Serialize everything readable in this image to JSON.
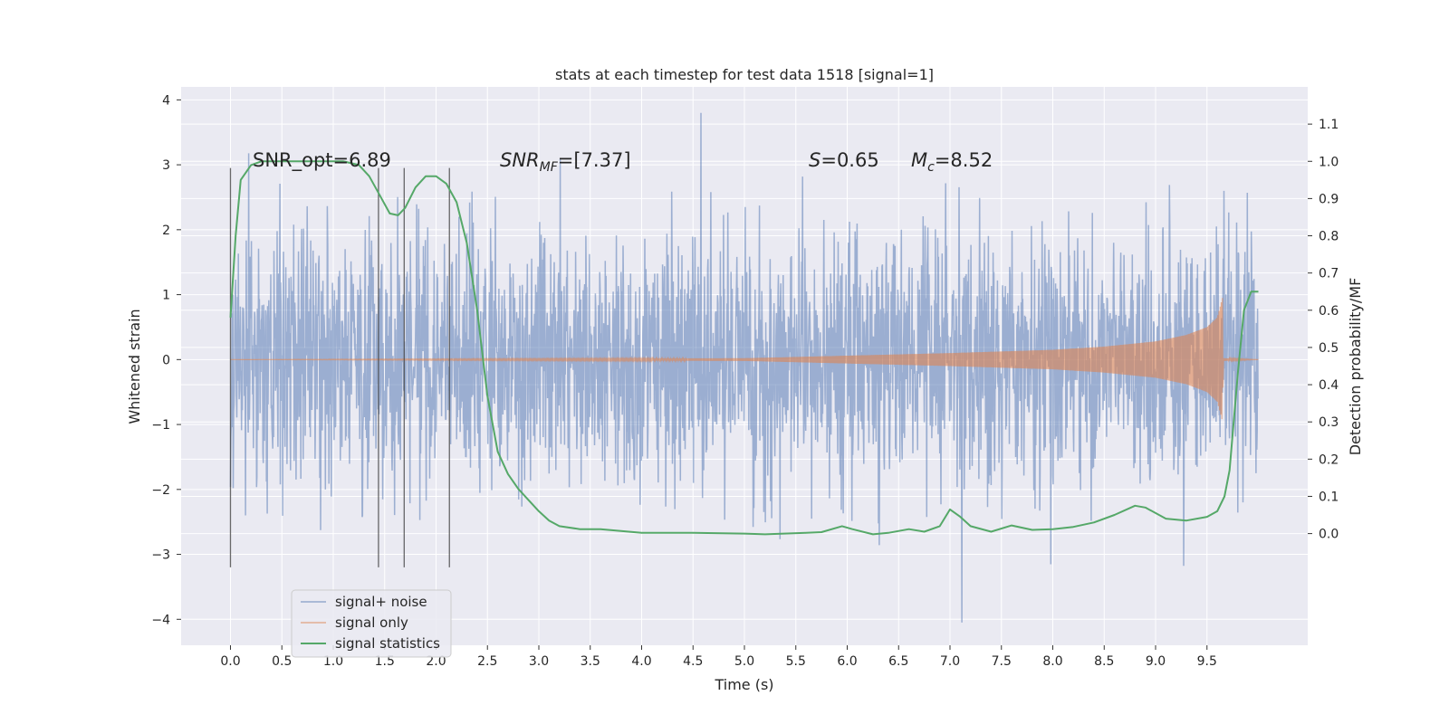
{
  "chart_data": {
    "type": "line",
    "title": "stats at each timestep for test data 1518 [signal=1]",
    "xlabel": "Time (s)",
    "ylabel": "Whitened strain",
    "y2label": "Detection probability/MF",
    "xlim": [
      -0.48,
      10.48
    ],
    "ylim": [
      -4.4,
      4.2
    ],
    "y2lim": [
      -0.3,
      1.2
    ],
    "x_ticks": [
      "0.0",
      "0.5",
      "1.0",
      "1.5",
      "2.0",
      "2.5",
      "3.0",
      "3.5",
      "4.0",
      "4.5",
      "5.0",
      "5.5",
      "6.0",
      "6.5",
      "7.0",
      "7.5",
      "8.0",
      "8.5",
      "9.0",
      "9.5"
    ],
    "y_ticks": [
      "−4",
      "−3",
      "−2",
      "−1",
      "0",
      "1",
      "2",
      "3",
      "4"
    ],
    "y2_ticks": [
      "0.0",
      "0.1",
      "0.2",
      "0.3",
      "0.4",
      "0.5",
      "0.6",
      "0.7",
      "0.8",
      "0.9",
      "1.0",
      "1.1"
    ],
    "grid": true,
    "legend_position": "lower-left",
    "annotations": {
      "snr_opt": "SNR_opt=6.89",
      "snr_mf_main": "SNR",
      "snr_mf_sub": "MF",
      "snr_mf_rest": "=[7.37]",
      "s_italic": "S",
      "s_rest": "=0.65",
      "mc_main": "M",
      "mc_sub": "c",
      "mc_rest": "=8.52"
    },
    "markers_x": [
      0.0,
      1.44,
      1.69,
      2.13
    ],
    "series": [
      {
        "name": "signal+ noise",
        "color": "#4c72b0",
        "noise_amplitude": 2.05,
        "noise_peaks": [
          -4.05,
          3.8
        ],
        "x_range": [
          0.0,
          10.0
        ]
      },
      {
        "name": "signal only",
        "color": "#dd8452",
        "envelope": [
          [
            0.0,
            0.0
          ],
          [
            5.0,
            0.02
          ],
          [
            6.0,
            0.06
          ],
          [
            7.0,
            0.1
          ],
          [
            8.0,
            0.15
          ],
          [
            8.5,
            0.2
          ],
          [
            9.0,
            0.28
          ],
          [
            9.3,
            0.38
          ],
          [
            9.5,
            0.5
          ],
          [
            9.6,
            0.65
          ],
          [
            9.65,
            0.95
          ],
          [
            9.66,
            0.02
          ],
          [
            10.0,
            0.0
          ]
        ]
      },
      {
        "name": "signal statistics",
        "color": "#55a868",
        "axis": "right",
        "points": [
          [
            0.0,
            0.58
          ],
          [
            0.05,
            0.8
          ],
          [
            0.1,
            0.95
          ],
          [
            0.2,
            0.99
          ],
          [
            0.3,
            1.0
          ],
          [
            0.6,
            1.0
          ],
          [
            0.9,
            1.0
          ],
          [
            1.1,
            1.0
          ],
          [
            1.25,
            0.99
          ],
          [
            1.35,
            0.96
          ],
          [
            1.45,
            0.91
          ],
          [
            1.55,
            0.86
          ],
          [
            1.63,
            0.855
          ],
          [
            1.7,
            0.875
          ],
          [
            1.8,
            0.93
          ],
          [
            1.9,
            0.96
          ],
          [
            2.0,
            0.96
          ],
          [
            2.1,
            0.94
          ],
          [
            2.2,
            0.89
          ],
          [
            2.3,
            0.78
          ],
          [
            2.4,
            0.6
          ],
          [
            2.5,
            0.37
          ],
          [
            2.6,
            0.22
          ],
          [
            2.7,
            0.16
          ],
          [
            2.8,
            0.12
          ],
          [
            2.9,
            0.09
          ],
          [
            3.0,
            0.06
          ],
          [
            3.1,
            0.035
          ],
          [
            3.2,
            0.02
          ],
          [
            3.4,
            0.012
          ],
          [
            3.6,
            0.012
          ],
          [
            3.8,
            0.007
          ],
          [
            4.0,
            0.002
          ],
          [
            4.5,
            0.002
          ],
          [
            5.0,
            0.0
          ],
          [
            5.2,
            -0.002
          ],
          [
            5.6,
            0.002
          ],
          [
            5.75,
            0.004
          ],
          [
            5.95,
            0.02
          ],
          [
            6.05,
            0.012
          ],
          [
            6.25,
            -0.002
          ],
          [
            6.4,
            0.002
          ],
          [
            6.6,
            0.012
          ],
          [
            6.75,
            0.005
          ],
          [
            6.9,
            0.02
          ],
          [
            7.0,
            0.065
          ],
          [
            7.1,
            0.045
          ],
          [
            7.2,
            0.02
          ],
          [
            7.4,
            0.005
          ],
          [
            7.6,
            0.022
          ],
          [
            7.8,
            0.01
          ],
          [
            8.0,
            0.012
          ],
          [
            8.2,
            0.018
          ],
          [
            8.4,
            0.03
          ],
          [
            8.6,
            0.05
          ],
          [
            8.8,
            0.075
          ],
          [
            8.9,
            0.07
          ],
          [
            9.1,
            0.04
          ],
          [
            9.3,
            0.035
          ],
          [
            9.5,
            0.045
          ],
          [
            9.6,
            0.06
          ],
          [
            9.67,
            0.1
          ],
          [
            9.72,
            0.17
          ],
          [
            9.8,
            0.43
          ],
          [
            9.86,
            0.6
          ],
          [
            9.93,
            0.65
          ],
          [
            10.0,
            0.65
          ]
        ]
      }
    ]
  }
}
